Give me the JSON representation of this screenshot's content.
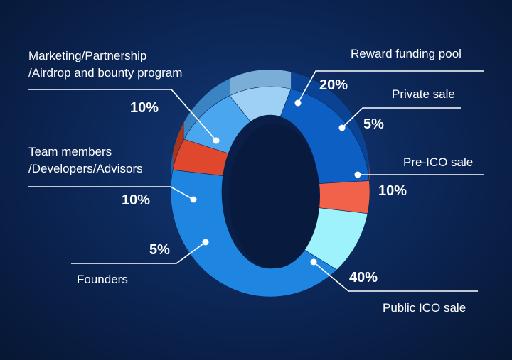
{
  "chart_data": {
    "type": "pie",
    "style": "3d-donut",
    "categories": [
      "Reward funding pool",
      "Private sale",
      "Pre-ICO sale",
      "Public ICO sale",
      "Founders",
      "Team members\n/Developers/Advisors",
      "Marketing/Partnership\n/Airdrop and bounty program"
    ],
    "values": [
      20,
      5,
      10,
      40,
      5,
      10,
      10
    ],
    "value_labels": [
      "20%",
      "5%",
      "10%",
      "40%",
      "5%",
      "10%",
      "10%"
    ],
    "colors": [
      "#0e5fc4",
      "#f2624a",
      "#9ef2fb",
      "#1e85e0",
      "#e0482e",
      "#4aa6ee",
      "#9ed0f6"
    ],
    "side_colors": [
      "#0a4393",
      "#b43e2e",
      "#79b9c3",
      "#1766b2",
      "#a8361f",
      "#3a84c3",
      "#7aaed6"
    ]
  }
}
